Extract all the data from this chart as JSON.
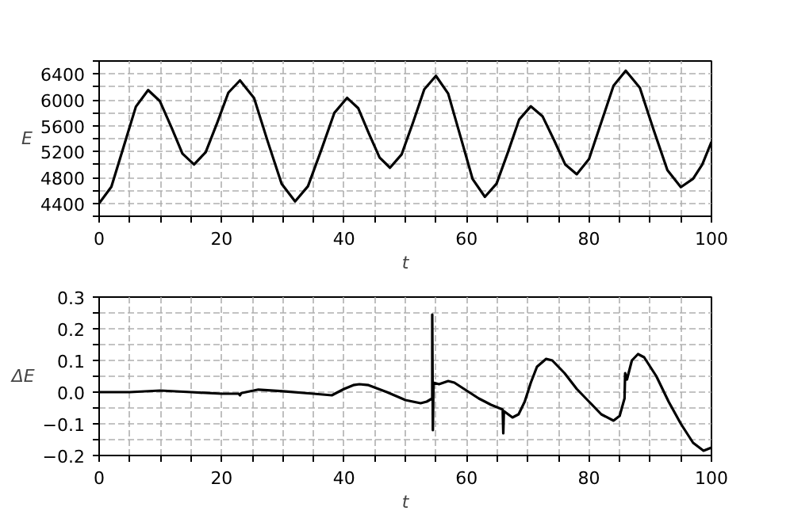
{
  "chart_data": [
    {
      "type": "line",
      "xlabel": "t",
      "ylabel": "E",
      "grid": true,
      "xlim": [
        0,
        100
      ],
      "ylim": [
        4200,
        6600
      ],
      "xticks": [
        0,
        {
          "value": 5,
          "label": null
        },
        {
          "value": 10,
          "label": null
        },
        {
          "value": 15,
          "label": null
        },
        20,
        {
          "value": 25,
          "label": null
        },
        {
          "value": 30,
          "label": null
        },
        {
          "value": 35,
          "label": null
        },
        40,
        {
          "value": 45,
          "label": null
        },
        {
          "value": 50,
          "label": null
        },
        {
          "value": 55,
          "label": null
        },
        60,
        {
          "value": 65,
          "label": null
        },
        {
          "value": 70,
          "label": null
        },
        {
          "value": 75,
          "label": null
        },
        80,
        {
          "value": 85,
          "label": null
        },
        {
          "value": 90,
          "label": null
        },
        {
          "value": 95,
          "label": null
        },
        100
      ],
      "yticks": [
        {
          "value": 4200,
          "label": null
        },
        4400,
        {
          "value": 4600,
          "label": null
        },
        4800,
        {
          "value": 5000,
          "label": null
        },
        5200,
        {
          "value": 5400,
          "label": null
        },
        5600,
        {
          "value": 5800,
          "label": null
        },
        6000,
        {
          "value": 6200,
          "label": null
        },
        6400,
        {
          "value": 6600,
          "label": null
        }
      ],
      "series": [
        {
          "color": "#000000",
          "x": [
            0,
            2,
            4,
            6,
            8,
            9.9,
            11.8,
            13.6,
            15.5,
            17.4,
            19.3,
            21.1,
            23,
            25.3,
            27.5,
            29.8,
            32,
            34.1,
            36.3,
            38.4,
            40.5,
            42.3,
            44,
            45.8,
            47.5,
            49.4,
            51.3,
            53.1,
            55,
            57,
            59,
            61,
            63,
            64.9,
            66.8,
            68.6,
            70.5,
            72.4,
            74.3,
            76.1,
            78,
            80,
            82,
            84,
            86,
            88.3,
            90.5,
            92.8,
            95,
            97,
            98.5,
            100
          ],
          "values": [
            4400,
            4656,
            5275,
            5894,
            6150,
            5982,
            5575,
            5168,
            5000,
            5190,
            5650,
            6110,
            6300,
            6027,
            5365,
            4703,
            4430,
            4664,
            5230,
            5796,
            6030,
            5872,
            5490,
            5108,
            4950,
            5157,
            5660,
            6163,
            6370,
            6097,
            5435,
            4773,
            4500,
            4704,
            5200,
            5696,
            5900,
            5747,
            5375,
            5003,
            4850,
            5084,
            5650,
            6216,
            6450,
            6186,
            5550,
            4914,
            4650,
            4780,
            5000,
            5350
          ]
        }
      ]
    },
    {
      "type": "line",
      "xlabel": "t",
      "ylabel": "ΔE",
      "grid": true,
      "xlim": [
        0,
        100
      ],
      "ylim": [
        -0.2,
        0.3
      ],
      "xticks": [
        0,
        {
          "value": 5,
          "label": null
        },
        {
          "value": 10,
          "label": null
        },
        {
          "value": 15,
          "label": null
        },
        20,
        {
          "value": 25,
          "label": null
        },
        {
          "value": 30,
          "label": null
        },
        {
          "value": 35,
          "label": null
        },
        40,
        {
          "value": 45,
          "label": null
        },
        {
          "value": 50,
          "label": null
        },
        {
          "value": 55,
          "label": null
        },
        60,
        {
          "value": 65,
          "label": null
        },
        {
          "value": 70,
          "label": null
        },
        {
          "value": 75,
          "label": null
        },
        80,
        {
          "value": 85,
          "label": null
        },
        {
          "value": 90,
          "label": null
        },
        {
          "value": 95,
          "label": null
        },
        100
      ],
      "yticks": [
        {
          "value": -0.2,
          "label": "−0.2"
        },
        {
          "value": -0.15,
          "label": null
        },
        {
          "value": -0.1,
          "label": "−0.1"
        },
        {
          "value": -0.05,
          "label": null
        },
        {
          "value": 0,
          "label": "0.0"
        },
        {
          "value": 0.05,
          "label": null
        },
        0.1,
        {
          "value": 0.15,
          "label": null
        },
        0.2,
        {
          "value": 0.25,
          "label": null
        },
        0.3
      ],
      "series": [
        {
          "color": "#000000",
          "x": [
            0,
            5,
            10,
            15,
            20,
            22.8,
            23,
            23.2,
            26,
            30,
            35,
            38,
            40,
            41.5,
            42.5,
            44,
            47,
            50,
            52.5,
            53.5,
            54.4,
            54.4,
            54.5,
            54.6,
            55.5,
            57,
            58,
            60,
            62,
            64,
            65.9,
            66,
            66.1,
            67.5,
            68.5,
            69.5,
            70.5,
            71.5,
            73,
            74,
            76,
            78,
            80,
            82,
            84,
            85,
            85.8,
            85.9,
            86.2,
            87,
            88,
            89,
            91,
            93,
            95,
            97,
            98.7,
            100
          ],
          "values": [
            0,
            0,
            0.005,
            0,
            -0.005,
            -0.005,
            -0.01,
            -0.003,
            0.008,
            0.003,
            -0.005,
            -0.01,
            0.01,
            0.022,
            0.025,
            0.022,
            0,
            -0.025,
            -0.035,
            -0.03,
            -0.02,
            0.245,
            -0.12,
            0.03,
            0.025,
            0.035,
            0.03,
            0.005,
            -0.02,
            -0.04,
            -0.055,
            -0.13,
            -0.06,
            -0.08,
            -0.07,
            -0.03,
            0.03,
            0.08,
            0.105,
            0.1,
            0.06,
            0.01,
            -0.03,
            -0.07,
            -0.09,
            -0.075,
            -0.02,
            0.06,
            0.04,
            0.1,
            0.12,
            0.11,
            0.05,
            -0.03,
            -0.1,
            -0.16,
            -0.185,
            -0.175
          ]
        }
      ]
    }
  ]
}
